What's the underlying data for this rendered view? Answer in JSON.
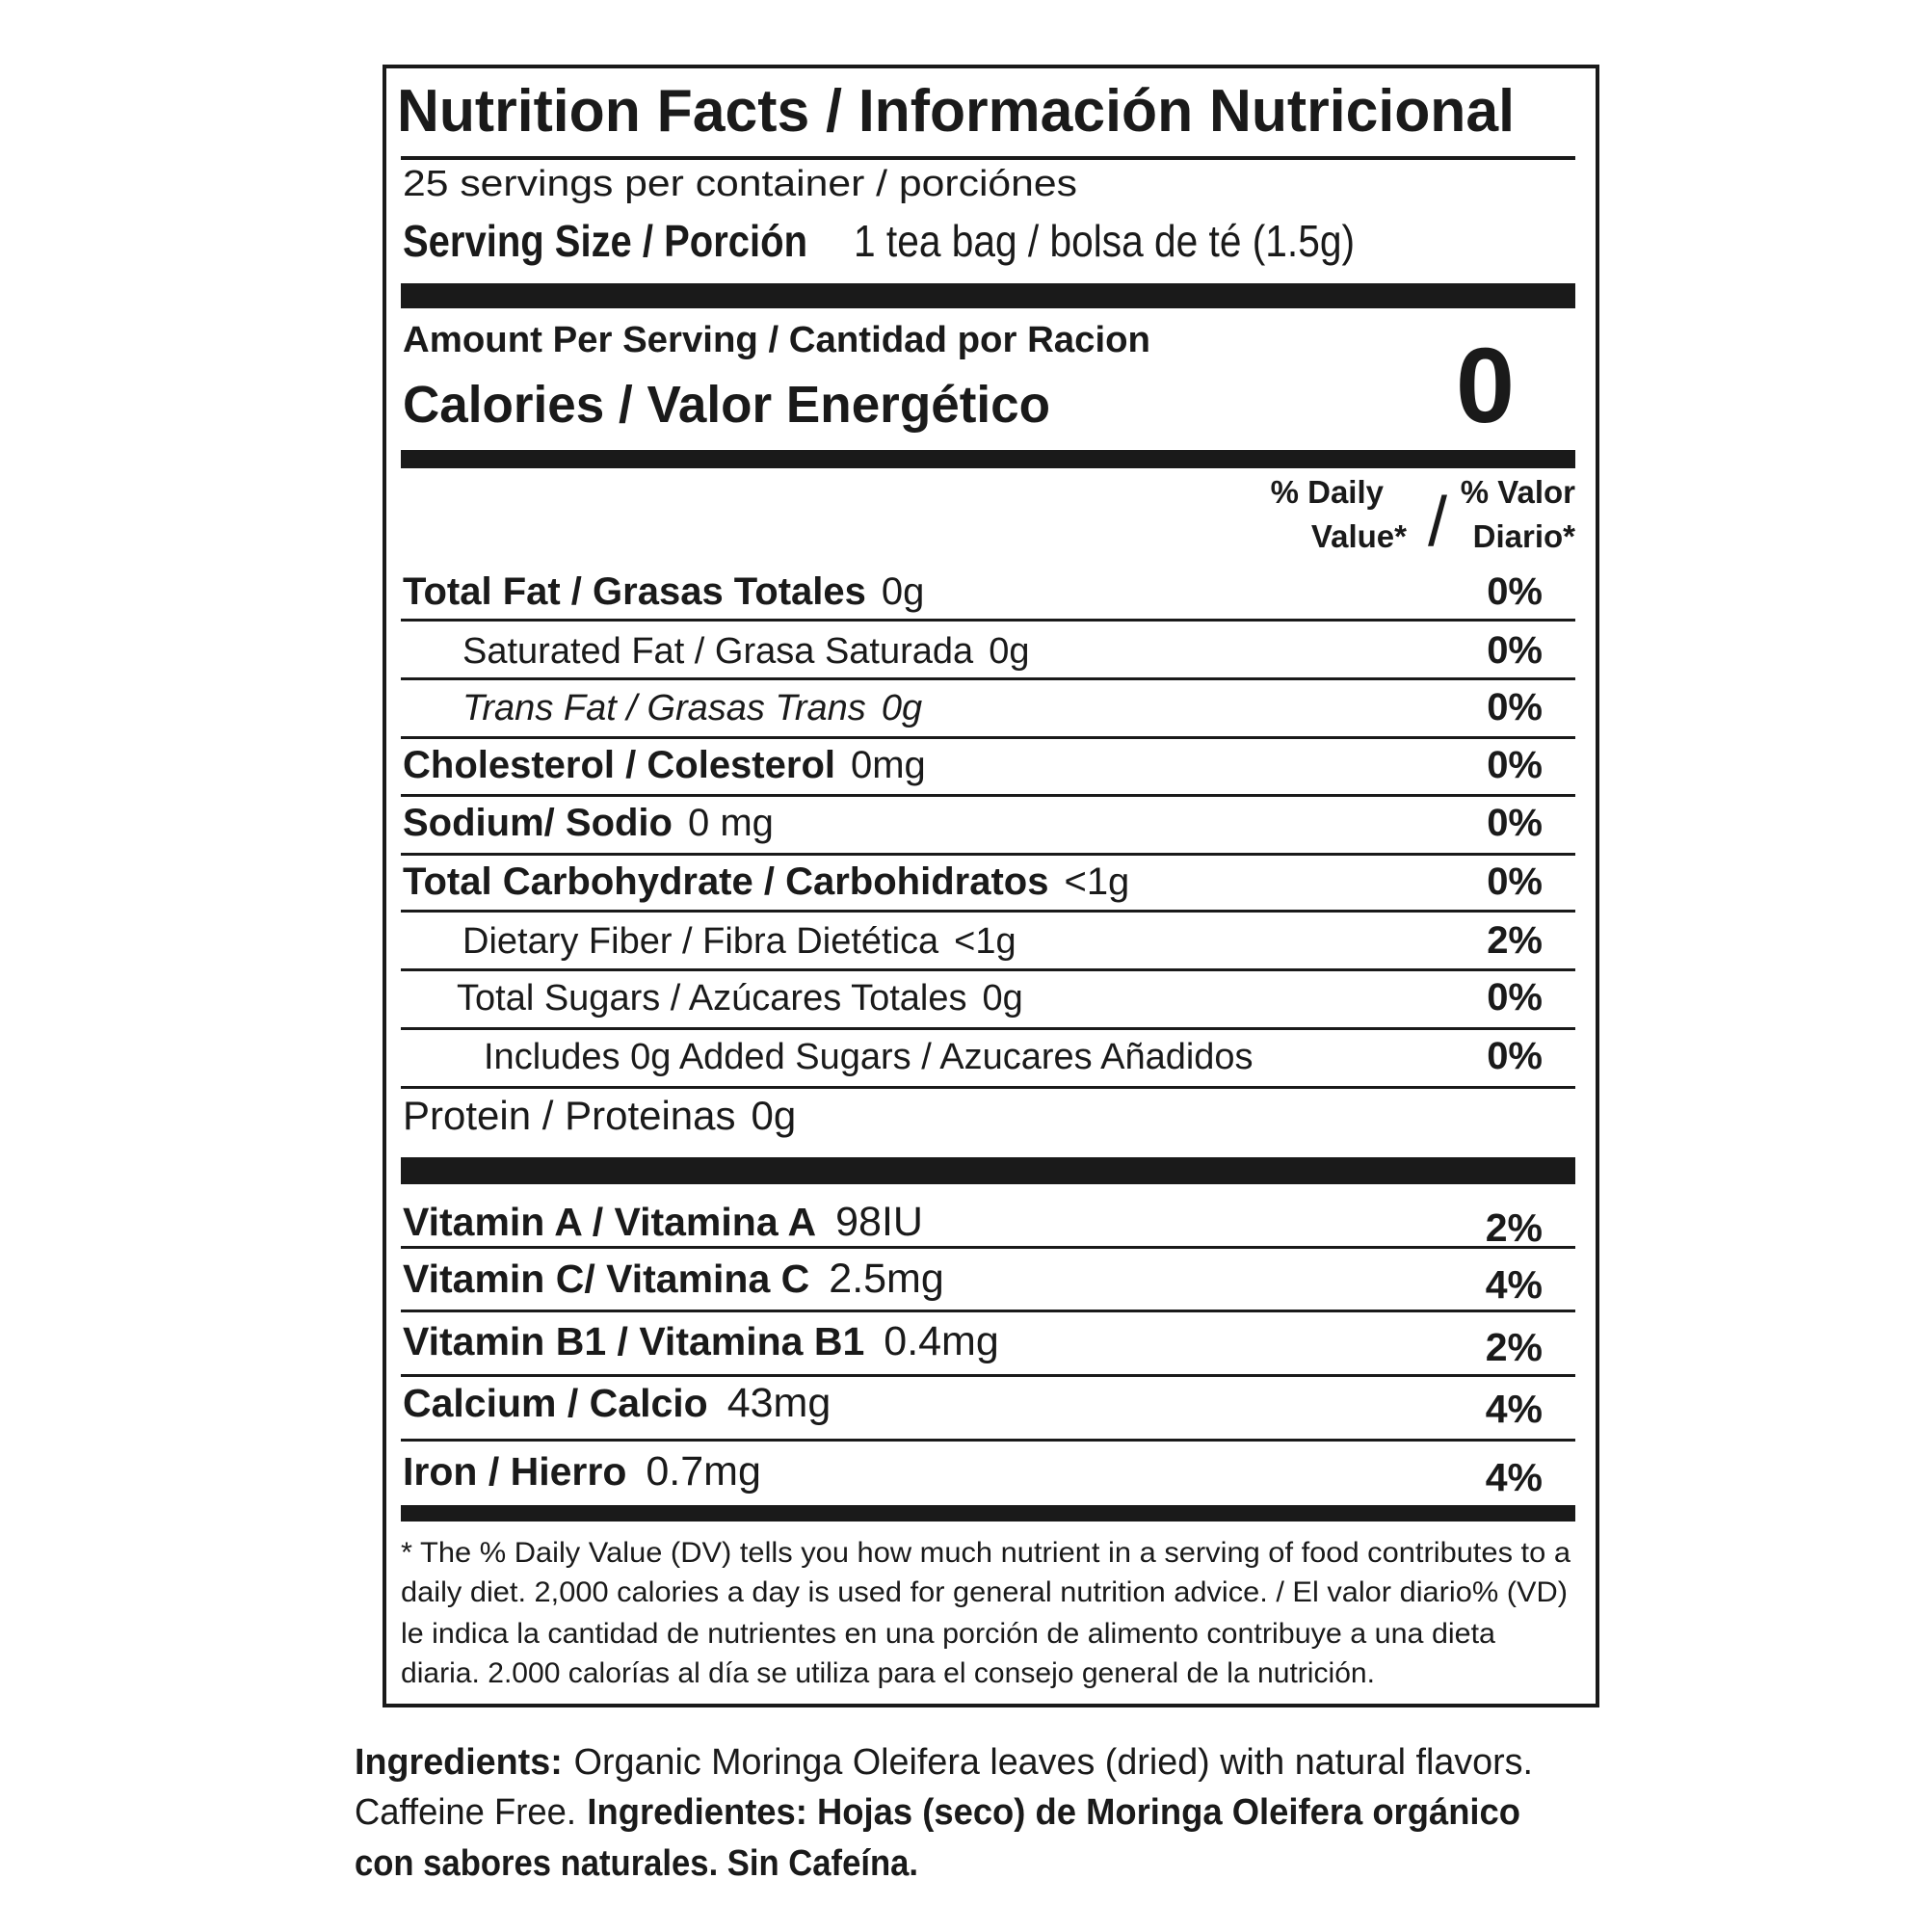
{
  "title": "Nutrition Facts / Información Nutricional",
  "servings": "25 servings per container / porciónes",
  "serving_size": {
    "label": "Serving Size / Porción",
    "value": "1 tea bag / bolsa de té (1.5g)"
  },
  "amount_per_serving": "Amount Per Serving / Cantidad por Racion",
  "calories": {
    "label": "Calories / Valor Energético",
    "value": "0"
  },
  "daily_value_header": {
    "en_line1": "% Daily",
    "en_line2": "Value*",
    "separator": "/",
    "es_line1": "% Valor",
    "es_line2": "Diario*"
  },
  "rows": [
    {
      "name": "Total Fat / Grasas Totales",
      "amount": "0g",
      "dv": "0%"
    },
    {
      "name": "Saturated Fat / Grasa Saturada",
      "amount": "0g",
      "dv": "0%"
    },
    {
      "name": "Trans Fat / Grasas Trans",
      "amount": "0g",
      "dv": "0%"
    },
    {
      "name": "Cholesterol / Colesterol",
      "amount": "0mg",
      "dv": "0%"
    },
    {
      "name": "Sodium/ Sodio",
      "amount": "0 mg",
      "dv": "0%"
    },
    {
      "name": "Total Carbohydrate / Carbohidratos",
      "amount": "<1g",
      "dv": "0%"
    },
    {
      "name": "Dietary Fiber / Fibra Dietética",
      "amount": "<1g",
      "dv": "2%"
    },
    {
      "name": "Total Sugars / Azúcares Totales",
      "amount": "0g",
      "dv": "0%"
    },
    {
      "name": "Includes 0g Added Sugars / Azucares Añadidos",
      "dv": "0%"
    },
    {
      "name": "Protein / Proteinas",
      "amount": "0g"
    }
  ],
  "vitamins": [
    {
      "name": "Vitamin A / Vitamina A",
      "amount": "98IU",
      "dv": "2%"
    },
    {
      "name": "Vitamin C/ Vitamina C",
      "amount": "2.5mg",
      "dv": "4%"
    },
    {
      "name": "Vitamin B1 / Vitamina B1",
      "amount": "0.4mg",
      "dv": "2%"
    },
    {
      "name": "Calcium / Calcio",
      "amount": "43mg",
      "dv": "4%"
    },
    {
      "name": "Iron / Hierro",
      "amount": "0.7mg",
      "dv": "4%"
    }
  ],
  "footnote": [
    "* The % Daily Value (DV) tells you how much nutrient in a serving of food contributes to a",
    "daily diet. 2,000 calories a day is used for general nutrition advice. / El valor diario% (VD)",
    "le indica la cantidad de nutrientes en una porción de alimento contribuye a una dieta",
    "diaria. 2.000 calorías al día se utiliza para el consejo general de la nutrición."
  ],
  "ingredients": [
    [
      "Ingredients:",
      "Organic Moringa Oleifera leaves (dried) with natural flavors."
    ],
    [
      "Caffeine Free.",
      "Ingredientes: Hojas (seco) de Moringa Oleifera orgánico"
    ],
    [
      "con sabores naturales. Sin Cafeína."
    ]
  ]
}
